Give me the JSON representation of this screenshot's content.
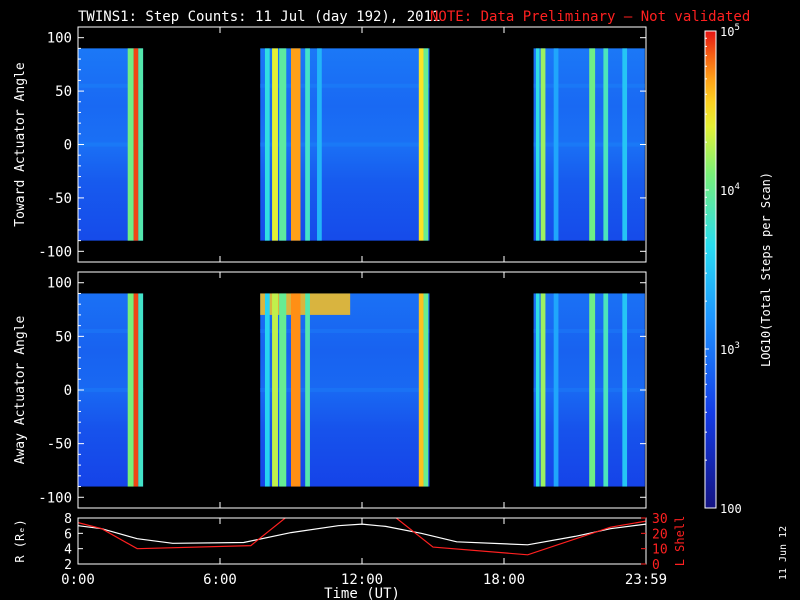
{
  "title": "TWINS1: Step Counts: 11 Jul (day 192), 2011",
  "note": "NOTE: Data Preliminary — Not validated",
  "stamp": "11 Jun 12",
  "colors": {
    "background": "#000000",
    "axes": "#ffffff",
    "note": "#ff2020",
    "orbit_r": "#ffffff",
    "orbit_l": "#ff2020"
  },
  "chart_data": [
    {
      "type": "heatmap",
      "ylabel": "Toward Actuator Angle",
      "ylim": [
        -110,
        110
      ],
      "yticks": [
        100,
        50,
        0,
        -50,
        -100
      ],
      "xlim": [
        0,
        24
      ],
      "xticks": [
        0,
        6,
        12,
        18,
        24
      ],
      "angle_range": [
        -90,
        90
      ],
      "data_blocks": [
        [
          0,
          2.75
        ],
        [
          7.7,
          14.85
        ],
        [
          19.25,
          23.95
        ]
      ],
      "level_log10": 2.9,
      "streaks": [
        {
          "hours": [
            2.1,
            2.35
          ],
          "log10": 4.05
        },
        {
          "hours": [
            2.35,
            2.55
          ],
          "log10": 4.9
        },
        {
          "hours": [
            2.55,
            2.75
          ],
          "log10": 3.9
        },
        {
          "hours": [
            7.9,
            8.1
          ],
          "log10": 3.7
        },
        {
          "hours": [
            8.2,
            8.45
          ],
          "log10": 4.4
        },
        {
          "hours": [
            8.5,
            8.8
          ],
          "log10": 3.95
        },
        {
          "hours": [
            9.0,
            9.4
          ],
          "log10": 4.7
        },
        {
          "hours": [
            9.6,
            9.8
          ],
          "log10": 3.8
        },
        {
          "hours": [
            10.1,
            10.3
          ],
          "log10": 3.4
        },
        {
          "hours": [
            14.4,
            14.6
          ],
          "log10": 4.5
        },
        {
          "hours": [
            14.6,
            14.8
          ],
          "log10": 4.0
        },
        {
          "hours": [
            19.35,
            19.5
          ],
          "log10": 3.7
        },
        {
          "hours": [
            19.55,
            19.75
          ],
          "log10": 4.2
        },
        {
          "hours": [
            20.1,
            20.3
          ],
          "log10": 3.3
        },
        {
          "hours": [
            21.6,
            21.85
          ],
          "log10": 4.05
        },
        {
          "hours": [
            22.2,
            22.4
          ],
          "log10": 3.85
        },
        {
          "hours": [
            23.0,
            23.2
          ],
          "log10": 3.5
        }
      ]
    },
    {
      "type": "heatmap",
      "ylabel": "Away Actuator Angle",
      "ylim": [
        -110,
        110
      ],
      "yticks": [
        100,
        50,
        0,
        -50,
        -100
      ],
      "xlim": [
        0,
        24
      ],
      "xticks": [
        0,
        6,
        12,
        18,
        24
      ],
      "angle_range": [
        -90,
        90
      ],
      "data_blocks": [
        [
          0,
          2.75
        ],
        [
          7.7,
          14.85
        ],
        [
          19.25,
          23.95
        ]
      ],
      "level_log10": 2.85,
      "top_band": {
        "hours": [
          7.7,
          11.5
        ],
        "angles": [
          70,
          90
        ],
        "log10": 4.6
      },
      "streaks": [
        {
          "hours": [
            2.1,
            2.35
          ],
          "log10": 4.1
        },
        {
          "hours": [
            2.35,
            2.55
          ],
          "log10": 4.9
        },
        {
          "hours": [
            2.55,
            2.75
          ],
          "log10": 3.8
        },
        {
          "hours": [
            7.9,
            8.1
          ],
          "log10": 3.6
        },
        {
          "hours": [
            8.2,
            8.45
          ],
          "log10": 4.3
        },
        {
          "hours": [
            8.5,
            8.8
          ],
          "log10": 4.0
        },
        {
          "hours": [
            9.0,
            9.4
          ],
          "log10": 4.75
        },
        {
          "hours": [
            9.6,
            9.8
          ],
          "log10": 3.9
        },
        {
          "hours": [
            14.4,
            14.6
          ],
          "log10": 4.6
        },
        {
          "hours": [
            14.6,
            14.8
          ],
          "log10": 4.0
        },
        {
          "hours": [
            19.35,
            19.5
          ],
          "log10": 3.7
        },
        {
          "hours": [
            19.55,
            19.75
          ],
          "log10": 4.2
        },
        {
          "hours": [
            20.1,
            20.3
          ],
          "log10": 3.3
        },
        {
          "hours": [
            21.6,
            21.85
          ],
          "log10": 4.05
        },
        {
          "hours": [
            22.2,
            22.4
          ],
          "log10": 3.85
        },
        {
          "hours": [
            23.0,
            23.2
          ],
          "log10": 3.5
        }
      ]
    },
    {
      "type": "line",
      "xlabel": "Time (UT)",
      "xlim": [
        0,
        24
      ],
      "xticks": [
        0,
        6,
        12,
        18,
        24
      ],
      "xtick_labels": [
        "0:00",
        "6:00",
        "12:00",
        "18:00",
        "23:59"
      ],
      "ylabel": "R (Rₑ)",
      "ylim": [
        2,
        8
      ],
      "yticks": [
        2,
        4,
        6,
        8
      ],
      "ylabel2": "L Shell",
      "ylim2": [
        0,
        30
      ],
      "yticks2": [
        0,
        10,
        20,
        30
      ],
      "series": [
        {
          "axis": "left",
          "color": "#ffffff",
          "x": [
            0,
            1,
            2.5,
            4,
            7,
            9,
            11,
            12,
            13,
            14.5,
            16,
            19,
            21,
            22.5,
            24
          ],
          "y": [
            7.0,
            6.6,
            5.3,
            4.7,
            4.8,
            6.1,
            7.0,
            7.2,
            6.9,
            6.0,
            4.9,
            4.5,
            5.6,
            6.6,
            7.2
          ]
        },
        {
          "axis": "right",
          "color": "#ff2020",
          "x": [
            0,
            1,
            2.5,
            7.3,
            9.0,
            13.2,
            15.0,
            19.0,
            22.5,
            24
          ],
          "y": [
            27,
            23,
            10,
            12,
            33,
            33,
            11,
            6,
            24,
            28
          ]
        }
      ]
    }
  ],
  "colorbar": {
    "title": "LOG10(Total Steps per Scan)",
    "ticks": [
      {
        "log10": 5,
        "label": "10^5"
      },
      {
        "log10": 4,
        "label": "10^4"
      },
      {
        "log10": 3,
        "label": "10^3"
      },
      {
        "log10": 2,
        "label": "100"
      }
    ],
    "range_log10": [
      2,
      5
    ]
  }
}
